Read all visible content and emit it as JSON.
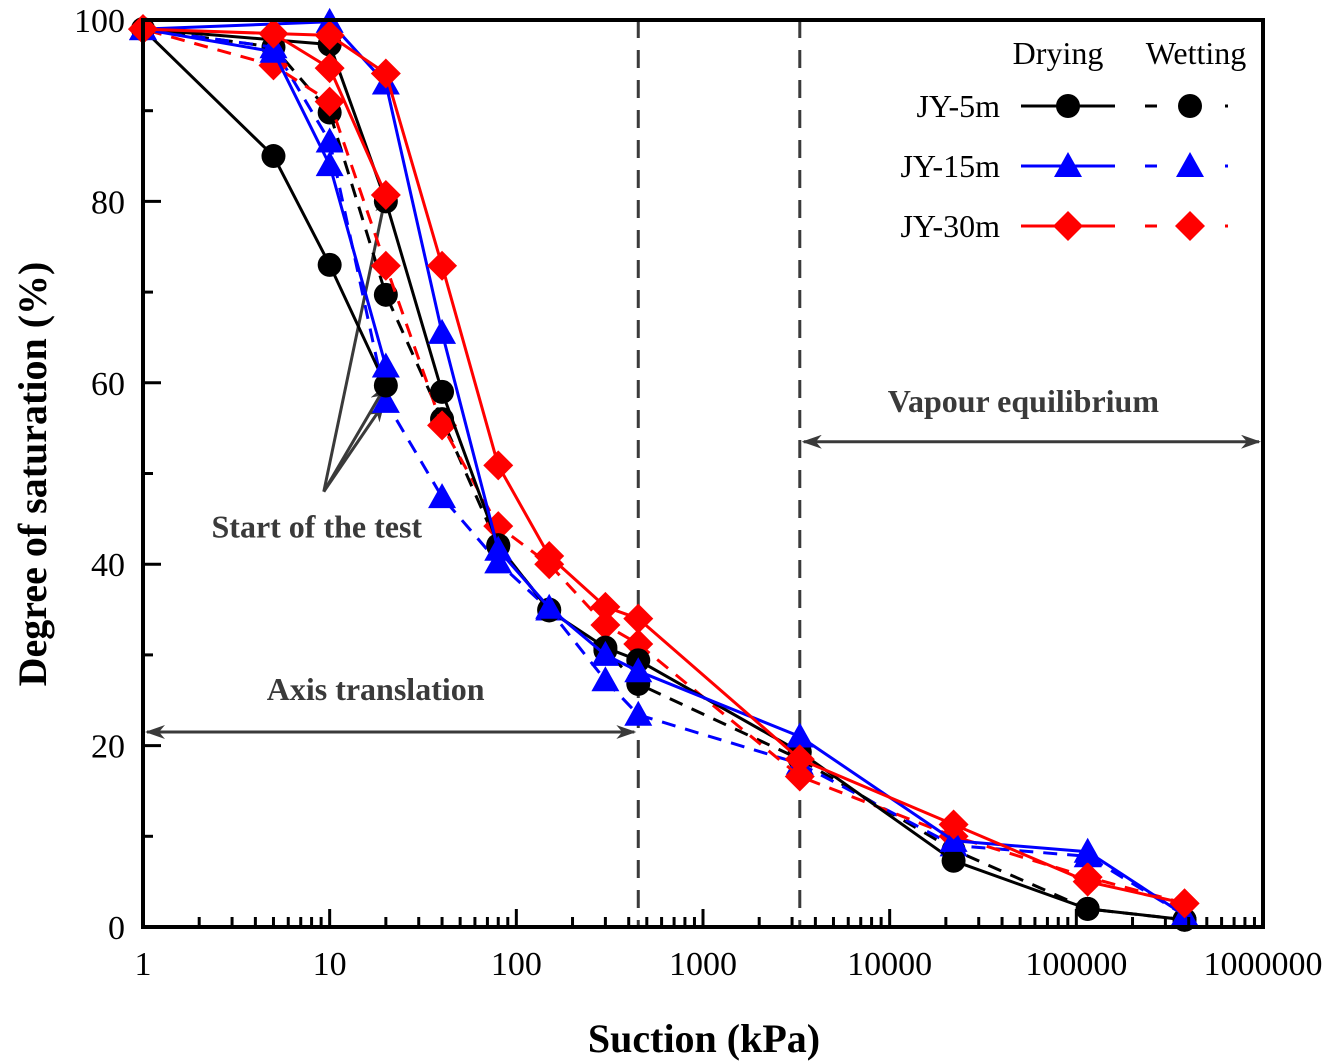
{
  "chart_data": {
    "type": "line",
    "title": "",
    "xlabel": "Suction (kPa)",
    "ylabel": "Degree of saturation (%)",
    "xscale": "log",
    "xlim": [
      1,
      1000000
    ],
    "ylim": [
      0,
      100
    ],
    "grid": false,
    "x_ticks": [
      {
        "value": 1,
        "label": "1"
      },
      {
        "value": 10,
        "label": "10"
      },
      {
        "value": 100,
        "label": "100"
      },
      {
        "value": 1000,
        "label": "1000"
      },
      {
        "value": 10000,
        "label": "10000"
      },
      {
        "value": 100000,
        "label": "100000"
      },
      {
        "value": 1000000,
        "label": "1000000"
      }
    ],
    "y_ticks": [
      {
        "value": 0,
        "label": "0"
      },
      {
        "value": 20,
        "label": "20"
      },
      {
        "value": 40,
        "label": "40"
      },
      {
        "value": 60,
        "label": "60"
      },
      {
        "value": 80,
        "label": "80"
      },
      {
        "value": 100,
        "label": "100"
      }
    ],
    "legend": {
      "placement": "top-right",
      "column_headers": [
        "Drying",
        "Wetting"
      ],
      "rows": [
        "JY-5m",
        "JY-15m",
        "JY-30m"
      ]
    },
    "series": [
      {
        "name": "JY-5m Drying",
        "sample": "JY-5m",
        "path": "Drying",
        "color": "#000000",
        "marker": "circle",
        "dashed": false,
        "points": [
          [
            20,
            59.7
          ],
          [
            10,
            73
          ],
          [
            5,
            85
          ],
          [
            1,
            99
          ],
          [
            10,
            97.3
          ],
          [
            20,
            80
          ],
          [
            40,
            59
          ],
          [
            80,
            42.1
          ],
          [
            150,
            34.9
          ],
          [
            300,
            30.8
          ],
          [
            450,
            29.4
          ],
          [
            3300,
            19.3
          ],
          [
            22000,
            7.3
          ],
          [
            115000,
            2.0
          ],
          [
            380000,
            0.8
          ]
        ]
      },
      {
        "name": "JY-5m Wetting",
        "sample": "JY-5m",
        "path": "Wetting",
        "color": "#000000",
        "marker": "circle",
        "dashed": true,
        "points": [
          [
            380000,
            0.8
          ],
          [
            115000,
            2.0
          ],
          [
            22000,
            8.5
          ],
          [
            3300,
            18.5
          ],
          [
            450,
            26.8
          ],
          [
            300,
            30.5
          ],
          [
            150,
            35
          ],
          [
            80,
            42
          ],
          [
            40,
            56
          ],
          [
            20,
            69.7
          ],
          [
            10,
            89.8
          ],
          [
            5,
            97
          ],
          [
            1,
            99
          ]
        ]
      },
      {
        "name": "JY-15m Drying",
        "sample": "JY-15m",
        "path": "Drying",
        "color": "#0000ff",
        "marker": "triangle",
        "dashed": false,
        "points": [
          [
            20,
            61.8
          ],
          [
            10,
            84
          ],
          [
            5,
            96.5
          ],
          [
            1,
            99
          ],
          [
            10,
            99.8
          ],
          [
            20,
            93
          ],
          [
            40,
            65.5
          ],
          [
            80,
            41.6
          ],
          [
            150,
            35.2
          ],
          [
            300,
            30
          ],
          [
            450,
            28.2
          ],
          [
            3300,
            21
          ],
          [
            22000,
            9.5
          ],
          [
            115000,
            8.3
          ],
          [
            380000,
            1.3
          ]
        ]
      },
      {
        "name": "JY-15m Wetting",
        "sample": "JY-15m",
        "path": "Wetting",
        "color": "#0000ff",
        "marker": "triangle",
        "dashed": true,
        "points": [
          [
            380000,
            1.3
          ],
          [
            115000,
            7.8
          ],
          [
            22000,
            9.0
          ],
          [
            3300,
            18
          ],
          [
            450,
            23.4
          ],
          [
            300,
            27.2
          ],
          [
            150,
            35
          ],
          [
            80,
            40.2
          ],
          [
            40,
            47.4
          ],
          [
            20,
            57.9
          ],
          [
            10,
            86.6
          ],
          [
            5,
            97
          ],
          [
            1,
            99
          ]
        ]
      },
      {
        "name": "JY-30m Drying",
        "sample": "JY-30m",
        "path": "Drying",
        "color": "#ff0000",
        "marker": "diamond",
        "dashed": false,
        "points": [
          [
            20,
            80.7
          ],
          [
            10,
            94.7
          ],
          [
            5,
            98.5
          ],
          [
            1,
            99
          ],
          [
            10,
            98.3
          ],
          [
            20,
            94.1
          ],
          [
            40,
            72.9
          ],
          [
            80,
            50.9
          ],
          [
            150,
            40.9
          ],
          [
            300,
            35.3
          ],
          [
            450,
            34
          ],
          [
            3300,
            18.5
          ],
          [
            22000,
            11.3
          ],
          [
            115000,
            5.0
          ],
          [
            380000,
            2.6
          ]
        ]
      },
      {
        "name": "JY-30m Wetting",
        "sample": "JY-30m",
        "path": "Wetting",
        "color": "#ff0000",
        "marker": "diamond",
        "dashed": true,
        "points": [
          [
            380000,
            2.6
          ],
          [
            115000,
            5.5
          ],
          [
            22000,
            10
          ],
          [
            3300,
            16.6
          ],
          [
            450,
            31.2
          ],
          [
            300,
            33.3
          ],
          [
            150,
            40
          ],
          [
            80,
            44.2
          ],
          [
            40,
            55.3
          ],
          [
            20,
            72.9
          ],
          [
            10,
            91
          ],
          [
            5,
            95
          ],
          [
            1,
            99
          ]
        ]
      }
    ],
    "reference_lines": [
      {
        "name": "axis-translation-limit",
        "x": 450,
        "style": "dashed",
        "color": "#3a3a3a"
      },
      {
        "name": "vapour-equilibrium-start",
        "x": 3300,
        "style": "dashed",
        "color": "#3a3a3a"
      }
    ],
    "annotations": [
      {
        "name": "axis-translation",
        "text": "Axis translation",
        "arrow_from_x": 1,
        "arrow_to_x": 450,
        "y": 21.5
      },
      {
        "name": "vapour-equilibrium",
        "text": "Vapour equilibrium",
        "arrow_from_x": 3300,
        "arrow_to_x": 1000000,
        "y": 53.5
      },
      {
        "name": "start-of-test",
        "text": "Start of the test",
        "origin": [
          9.3,
          48
        ],
        "targets": [
          [
            20,
            80.7
          ],
          [
            20,
            59.7
          ],
          [
            19.5,
            57.7
          ]
        ]
      }
    ]
  }
}
